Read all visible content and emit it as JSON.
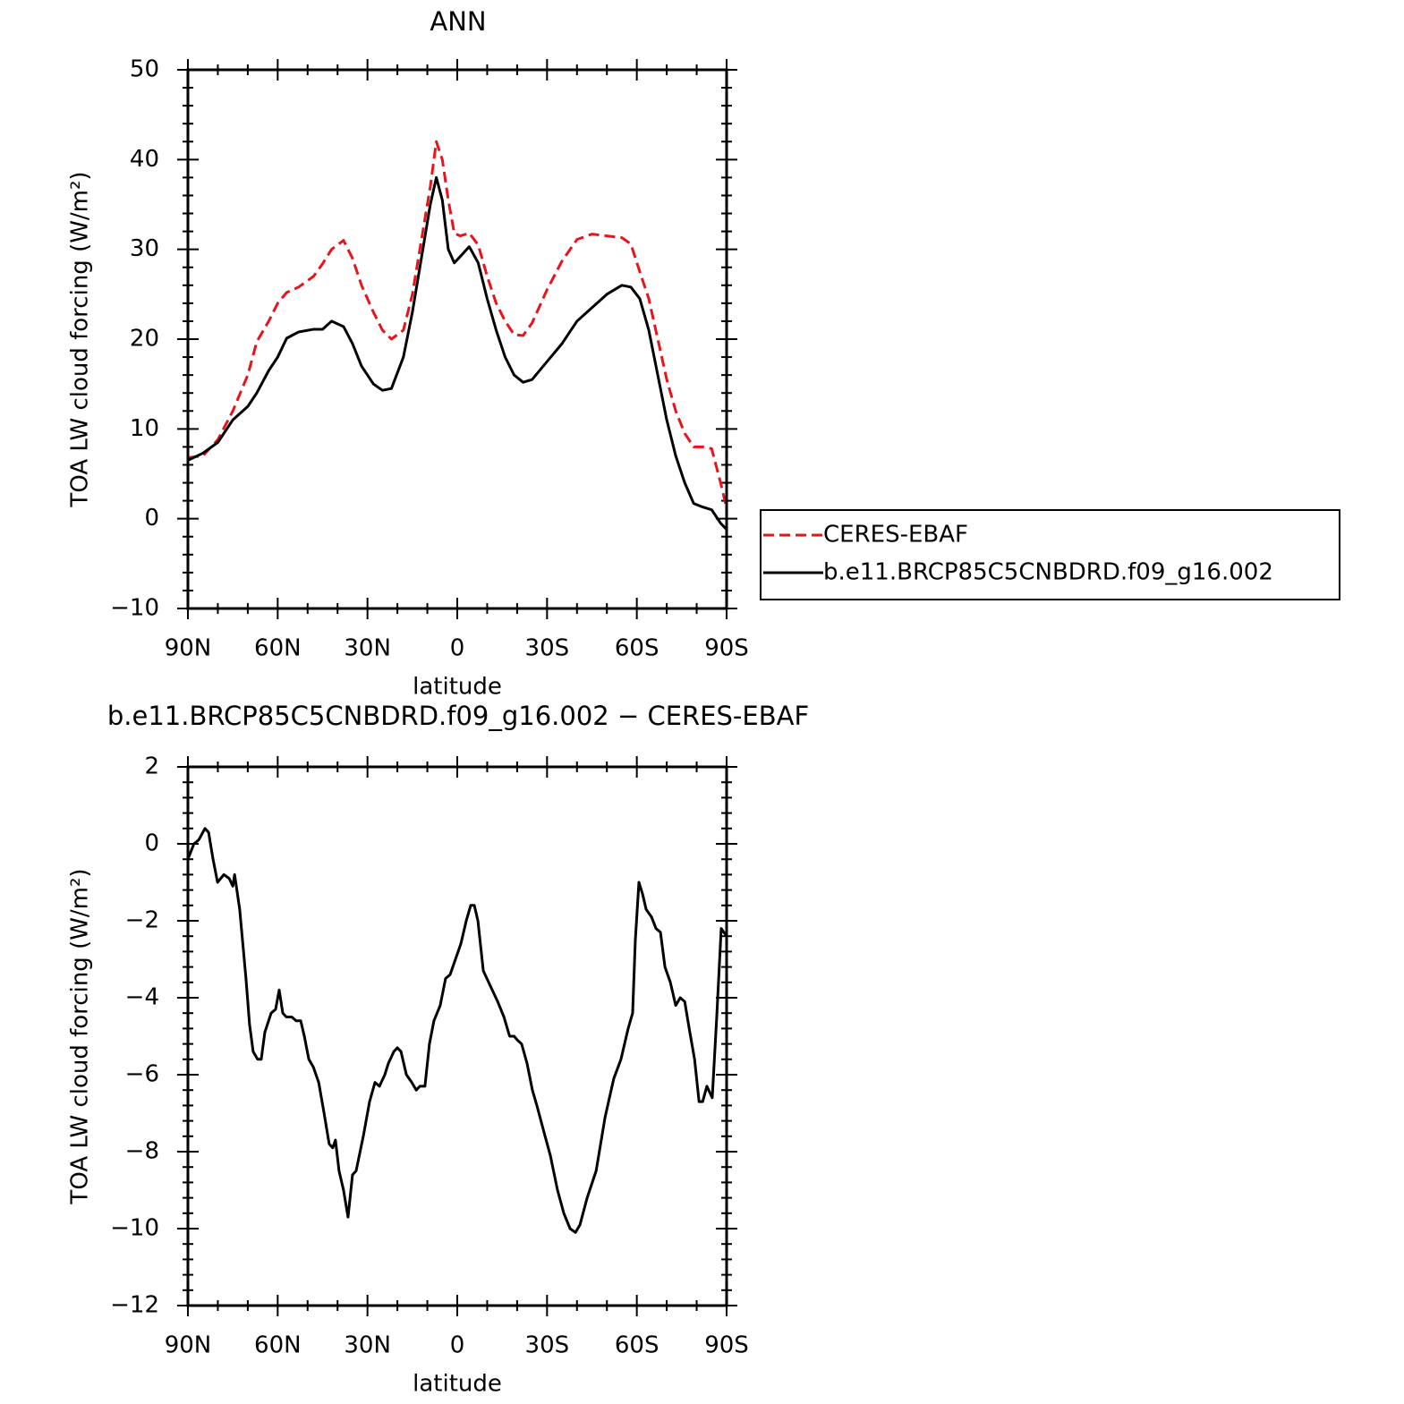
{
  "chart_data": [
    {
      "type": "line",
      "title": "ANN",
      "xlabel": "latitude",
      "ylabel": "TOA LW cloud forcing (W/m²)",
      "xlim": [
        90,
        -90
      ],
      "ylim": [
        -10,
        50
      ],
      "xticks": [
        {
          "value": 90,
          "label": "90N"
        },
        {
          "value": 60,
          "label": "60N"
        },
        {
          "value": 30,
          "label": "30N"
        },
        0,
        {
          "value": -30,
          "label": "30S"
        },
        {
          "value": -60,
          "label": "60S"
        },
        {
          "value": -90,
          "label": "90S"
        }
      ],
      "yticks": [
        {
          "value": -10,
          "label": "−10"
        },
        0,
        10,
        20,
        30,
        40,
        50
      ],
      "legend": "right",
      "x": [
        90,
        85,
        80,
        75,
        70,
        67,
        63,
        60,
        57,
        53,
        48,
        45,
        42,
        38,
        35,
        32,
        28,
        25,
        22,
        18,
        15,
        12,
        9,
        7,
        5,
        3,
        1,
        -1,
        -4,
        -7,
        -10,
        -13,
        -16,
        -19,
        -22,
        -25,
        -30,
        -35,
        -40,
        -45,
        -50,
        -55,
        -58,
        -61,
        -64,
        -67,
        -70,
        -73,
        -76,
        -79,
        -82,
        -85,
        -88,
        -90
      ],
      "series": [
        {
          "name": "CERES-EBAF",
          "color": "#e8141b",
          "style": "dashed",
          "values": [
            6.8,
            7.0,
            8.8,
            12,
            16,
            19.7,
            22,
            24,
            25.2,
            25.8,
            27,
            28.4,
            30,
            31,
            29,
            26,
            23,
            21,
            20,
            21,
            25,
            31,
            37,
            42,
            40,
            35.5,
            31.8,
            31.5,
            31.8,
            30.5,
            27,
            24,
            22,
            20.5,
            20.4,
            21.8,
            25.5,
            28.7,
            31.1,
            31.7,
            31.5,
            31.3,
            30.6,
            27.5,
            24.5,
            20,
            15.5,
            12,
            9.5,
            8,
            8,
            7.8,
            4,
            1.2
          ]
        },
        {
          "name": "b.e11.BRCP85C5CNBDRD.f09_g16.002",
          "color": "#000000",
          "style": "solid",
          "values": [
            6.5,
            7.3,
            8.5,
            11,
            12.5,
            14,
            16.5,
            18,
            20.1,
            20.8,
            21.1,
            21.1,
            22,
            21.4,
            19.5,
            17,
            15,
            14.3,
            14.5,
            18,
            23,
            29,
            35,
            38,
            35.5,
            30,
            28.5,
            29.2,
            30.3,
            28.5,
            24.5,
            21,
            18,
            16,
            15.2,
            15.5,
            17.5,
            19.5,
            22,
            23.5,
            25,
            26,
            25.8,
            24.5,
            21,
            16,
            11,
            7,
            4,
            1.7,
            1.3,
            1,
            -0.5,
            -1.2
          ]
        }
      ]
    },
    {
      "type": "line",
      "title": "b.e11.BRCP85C5CNBDRD.f09_g16.002 − CERES-EBAF",
      "xlabel": "latitude",
      "ylabel": "TOA LW cloud forcing (W/m²)",
      "xlim": [
        90,
        -90
      ],
      "ylim": [
        -12,
        2
      ],
      "xticks": [
        {
          "value": 90,
          "label": "90N"
        },
        {
          "value": 60,
          "label": "60N"
        },
        {
          "value": 30,
          "label": "30N"
        },
        0,
        {
          "value": -30,
          "label": "30S"
        },
        {
          "value": -60,
          "label": "60S"
        },
        {
          "value": -90,
          "label": "90S"
        }
      ],
      "yticks": [
        {
          "value": -12,
          "label": "−12"
        },
        {
          "value": -10,
          "label": "−10"
        },
        {
          "value": -8,
          "label": "−8"
        },
        {
          "value": -6,
          "label": "−6"
        },
        {
          "value": -4,
          "label": "−4"
        },
        {
          "value": -2,
          "label": "−2"
        },
        0,
        2
      ],
      "x": [
        90,
        88,
        86.4,
        84.3,
        83.1,
        81.6,
        80.1,
        78,
        76.2,
        75,
        74.4,
        72.7,
        70.6,
        69.4,
        68.2,
        66.7,
        65.5,
        64.3,
        62.2,
        60.7,
        59.5,
        58.3,
        57.1,
        55.3,
        53.8,
        52.3,
        51.1,
        49.6,
        48.1,
        46.3,
        44.5,
        42.8,
        41.6,
        40.7,
        39.5,
        38,
        36.5,
        35,
        33.8,
        31.4,
        29.3,
        27.5,
        26,
        24.2,
        23,
        21.2,
        20,
        18.8,
        17,
        15.2,
        13.7,
        12.5,
        10.8,
        9.3,
        7.8,
        5.7,
        3.9,
        2.4,
        0.6,
        -1.2,
        -3,
        -4.5,
        -5.7,
        -6.9,
        -8.7,
        -11.1,
        -13.5,
        -15.6,
        -17.5,
        -19,
        -20.1,
        -21.5,
        -23.3,
        -25.1,
        -26.6,
        -29,
        -31.1,
        -33.5,
        -35.6,
        -37.7,
        -39.5,
        -41,
        -43.4,
        -46.4,
        -49.4,
        -52.3,
        -54.7,
        -57.1,
        -58.6,
        -59.5,
        -60.7,
        -61.9,
        -63.1,
        -64.9,
        -66.4,
        -67.9,
        -69.4,
        -71.2,
        -73,
        -74.5,
        -76,
        -77.5,
        -79.3,
        -80.8,
        -82,
        -83.4,
        -85.2,
        -86.7,
        -88.2,
        -90
      ],
      "series": [
        {
          "color": "#000000",
          "style": "solid",
          "values": [
            -0.4,
            0,
            0.1,
            0.4,
            0.3,
            -0.4,
            -1.0,
            -0.8,
            -0.9,
            -1.1,
            -0.8,
            -1.7,
            -3.5,
            -4.7,
            -5.4,
            -5.6,
            -5.6,
            -4.9,
            -4.4,
            -4.3,
            -3.8,
            -4.4,
            -4.5,
            -4.5,
            -4.6,
            -4.6,
            -5.0,
            -5.6,
            -5.8,
            -6.2,
            -7.0,
            -7.8,
            -7.9,
            -7.7,
            -8.5,
            -9.0,
            -9.7,
            -8.6,
            -8.5,
            -7.6,
            -6.7,
            -6.2,
            -6.3,
            -6.0,
            -5.7,
            -5.4,
            -5.3,
            -5.4,
            -6.0,
            -6.2,
            -6.4,
            -6.3,
            -6.3,
            -5.2,
            -4.6,
            -4.2,
            -3.5,
            -3.4,
            -3.0,
            -2.6,
            -2.0,
            -1.6,
            -1.6,
            -2.0,
            -3.3,
            -3.7,
            -4.1,
            -4.5,
            -5.0,
            -5.0,
            -5.1,
            -5.2,
            -5.7,
            -6.4,
            -6.8,
            -7.5,
            -8.1,
            -9.0,
            -9.6,
            -10.0,
            -10.1,
            -9.9,
            -9.2,
            -8.5,
            -7.1,
            -6.1,
            -5.6,
            -4.8,
            -4.4,
            -2.5,
            -1.0,
            -1.3,
            -1.7,
            -1.9,
            -2.2,
            -2.3,
            -3.2,
            -3.6,
            -4.2,
            -4.0,
            -4.1,
            -4.8,
            -5.6,
            -6.7,
            -6.7,
            -6.3,
            -6.6,
            -4.5,
            -2.2,
            -2.4
          ]
        }
      ]
    }
  ]
}
